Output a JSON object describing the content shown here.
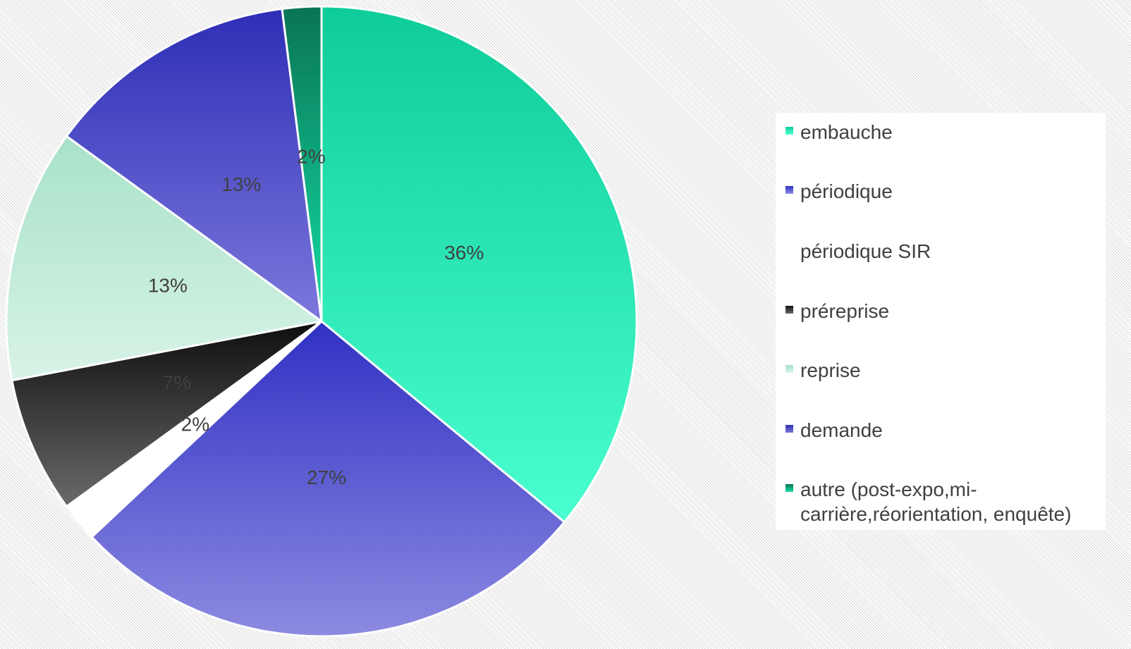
{
  "chart_data": {
    "type": "pie",
    "categories": [
      "embauche",
      "périodique",
      "périodique SIR",
      "préreprise",
      "reprise",
      "demande",
      "autre (post-expo,mi-carrière,réorientation, enquête)"
    ],
    "values": [
      36,
      27,
      2,
      7,
      13,
      13,
      2
    ],
    "value_labels": [
      "36%",
      "27%",
      "2%",
      "7%",
      "13%",
      "13%",
      "2%"
    ],
    "colors": [
      [
        "#0ecc9a",
        "#4affd0"
      ],
      [
        "#3030c4",
        "#8c8ae0"
      ],
      [
        "#ffffff",
        "#ffffff"
      ],
      [
        "#0e0e0e",
        "#6a6a6a"
      ],
      [
        "#a8e2c8",
        "#d8f3e7"
      ],
      [
        "#2e2eb6",
        "#7c78dc"
      ],
      [
        "#0a7456",
        "#14dca2"
      ]
    ],
    "legend": "right"
  }
}
